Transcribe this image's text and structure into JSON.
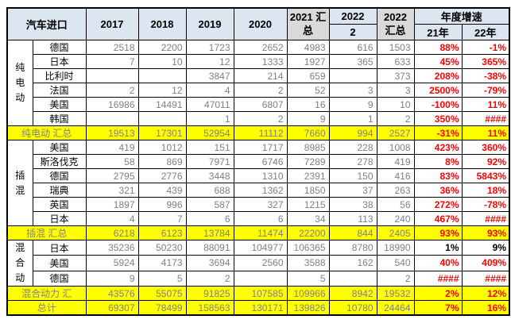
{
  "title": "汽车进口",
  "header": {
    "years": [
      "2017",
      "2018",
      "2019",
      "2020"
    ],
    "col_2021_sum": "2021 汇总",
    "col_2022_month": {
      "year": "2022",
      "month": "2"
    },
    "col_2022_sum": "2022 汇总",
    "growth": "年度增速",
    "growth_cols": [
      "21年",
      "22年"
    ]
  },
  "sections": [
    {
      "type": "group",
      "label": "纯电动",
      "rows": [
        {
          "country": "德国",
          "v": [
            "2518",
            "2200",
            "1723",
            "2652",
            "4983",
            "616",
            "1503"
          ],
          "g21": "88%",
          "g22": "-1%",
          "tri": true
        },
        {
          "country": "日本",
          "v": [
            "7",
            "10",
            "12",
            "1333",
            "1927",
            "365",
            "633"
          ],
          "g21": "45%",
          "g22": "365%",
          "tri": true
        },
        {
          "country": "比利时",
          "v": [
            "",
            "",
            "3847",
            "214",
            "659",
            "",
            "373"
          ],
          "g21": "208%",
          "g22": "-38%",
          "tri": true
        },
        {
          "country": "法国",
          "v": [
            "2",
            "12",
            "4",
            "2",
            "52",
            "3",
            "3"
          ],
          "g21": "2500%",
          "g22": "-79%",
          "tri": true
        },
        {
          "country": "美国",
          "v": [
            "16986",
            "14491",
            "47011",
            "6807",
            "16",
            "9",
            "10"
          ],
          "g21": "-100%",
          "g22": "11%",
          "tri": true
        },
        {
          "country": "韩国",
          "v": [
            "",
            "",
            "1",
            "2",
            "9",
            "1",
            "2"
          ],
          "g21": "350%",
          "g22": "####",
          "tri": true
        }
      ]
    },
    {
      "type": "summary",
      "label": "纯电动 汇总",
      "v": [
        "19513",
        "17301",
        "52954",
        "11112",
        "7660",
        "994",
        "2527"
      ],
      "g21": "-31%",
      "g22": "11%",
      "tri": true
    },
    {
      "type": "group",
      "label": "插混",
      "rows": [
        {
          "country": "美国",
          "v": [
            "419",
            "1012",
            "151",
            "1717",
            "8985",
            "228",
            "1008"
          ],
          "g21": "423%",
          "g22": "360%",
          "tri": true
        },
        {
          "country": "斯洛伐克",
          "v": [
            "58",
            "869",
            "7971",
            "6746",
            "7289",
            "278",
            "419"
          ],
          "g21": "8%",
          "g22": "92%",
          "tri": true
        },
        {
          "country": "德国",
          "v": [
            "2795",
            "2776",
            "3448",
            "1310",
            "2391",
            "150",
            "416"
          ],
          "g21": "83%",
          "g22": "5843%",
          "tri": true
        },
        {
          "country": "瑞典",
          "v": [
            "321",
            "439",
            "688",
            "1362",
            "1850",
            "37",
            "263"
          ],
          "g21": "36%",
          "g22": "18%",
          "tri": true
        },
        {
          "country": "英国",
          "v": [
            "1897",
            "996",
            "587",
            "327",
            "1215",
            "38",
            "56"
          ],
          "g21": "272%",
          "g22": "-78%",
          "tri": true
        },
        {
          "country": "日本",
          "v": [
            "4",
            "7",
            "6",
            "6",
            "34",
            "113",
            "240"
          ],
          "g21": "467%",
          "g22": "####",
          "tri": true
        }
      ]
    },
    {
      "type": "summary",
      "label": "插混 汇总",
      "v": [
        "6218",
        "6123",
        "13784",
        "11474",
        "22200",
        "844",
        "2405"
      ],
      "g21": "93%",
      "g22": "93%",
      "tri": true
    },
    {
      "type": "group",
      "label": "混合动",
      "rows": [
        {
          "country": "日本",
          "v": [
            "35236",
            "50230",
            "88091",
            "104977",
            "106365",
            "8780",
            "18990"
          ],
          "g21": "1%",
          "g22": "9%",
          "tri": false,
          "pct_color": "black"
        },
        {
          "country": "美国",
          "v": [
            "5924",
            "4173",
            "3694",
            "2560",
            "3588",
            "162",
            "540"
          ],
          "g21": "40%",
          "g22": "409%",
          "tri": false
        },
        {
          "country": "德国",
          "v": [
            "9",
            "5",
            "2",
            "",
            "5",
            "",
            "2"
          ],
          "g21": "####",
          "g22": "####",
          "tri": false
        }
      ]
    },
    {
      "type": "summary",
      "label": "混合动力 汇",
      "v": [
        "43576",
        "55075",
        "91825",
        "107585",
        "109966",
        "8942",
        "19532"
      ],
      "g21": "2%",
      "g22": "12%",
      "tri": false
    },
    {
      "type": "summary",
      "label": "总计",
      "v": [
        "69307",
        "78499",
        "158563",
        "130171",
        "139826",
        "10780",
        "24464"
      ],
      "g21": "7%",
      "g22": "16%",
      "tri": false
    }
  ],
  "colors": {
    "header_blue": "#DCE6F1",
    "header_gray": "#D9D9D9",
    "summary_yellow": "#FFFF00",
    "value_gray": "#808080",
    "percent_red": "#FF0000",
    "indicator_green": "#008000",
    "border_black": "#000000"
  }
}
